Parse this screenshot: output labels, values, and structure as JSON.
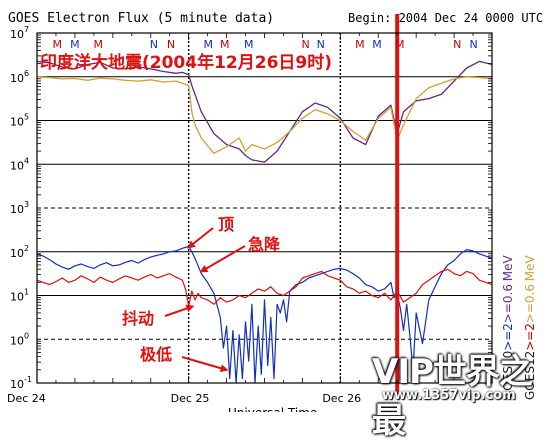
{
  "chart_data": {
    "type": "line",
    "title": "GOES Electron Flux (5 minute data)",
    "begin_label": "Begin: 2004 Dec 24 0000 UTC",
    "overlay_title": "印度洋大地震(2004年12月26日9时)",
    "y_scale": "log",
    "ylim_exp": [
      -1,
      7
    ],
    "y_tick_labels": [
      {
        "base": "10",
        "exp": "7",
        "value_exp": 7
      },
      {
        "base": "10",
        "exp": "6",
        "value_exp": 6
      },
      {
        "base": "10",
        "exp": "5",
        "value_exp": 5
      },
      {
        "base": "10",
        "exp": "4",
        "value_exp": 4
      },
      {
        "base": "10",
        "exp": "3",
        "value_exp": 3
      },
      {
        "base": "10",
        "exp": "2",
        "value_exp": 2
      },
      {
        "base": "10",
        "exp": "1",
        "value_exp": 1
      },
      {
        "base": "10",
        "exp": "0",
        "value_exp": 0
      },
      {
        "base": "10",
        "exp": "-1",
        "value_exp": -1
      }
    ],
    "x_tick_labels": [
      "Dec 24",
      "Dec 25",
      "Dec 26"
    ],
    "x_range_hours": [
      0,
      72
    ],
    "xlabel_partial": "Universal Time",
    "mn_markers": [
      {
        "t": 3.2,
        "label": "M",
        "color": "#cc0000"
      },
      {
        "t": 6.0,
        "label": "M",
        "color": "#1030c0"
      },
      {
        "t": 9.7,
        "label": "M",
        "color": "#cc0000"
      },
      {
        "t": 18.5,
        "label": "N",
        "color": "#1030c0"
      },
      {
        "t": 21.2,
        "label": "N",
        "color": "#cc0000"
      },
      {
        "t": 27.1,
        "label": "M",
        "color": "#1030c0"
      },
      {
        "t": 29.7,
        "label": "M",
        "color": "#cc0000"
      },
      {
        "t": 33.5,
        "label": "M",
        "color": "#1030c0"
      },
      {
        "t": 42.5,
        "label": "N",
        "color": "#cc0000"
      },
      {
        "t": 44.9,
        "label": "N",
        "color": "#1030c0"
      },
      {
        "t": 51.1,
        "label": "M",
        "color": "#cc0000"
      },
      {
        "t": 53.8,
        "label": "M",
        "color": "#1030c0"
      },
      {
        "t": 57.4,
        "label": "M",
        "color": "#cc0000"
      },
      {
        "t": 66.5,
        "label": "N",
        "color": "#cc0000"
      },
      {
        "t": 69.1,
        "label": "N",
        "color": "#1030c0"
      }
    ],
    "earthquake_line_hours": 57,
    "right_labels": [
      {
        "text": "GOES10",
        "color": "#1a1a1a"
      },
      {
        "text": ">=2",
        "color": "#1030c0"
      },
      {
        "text": ">=0.6",
        "color": "#6a2c8c"
      },
      {
        "text": "MeV",
        "color": "#6a2c8c"
      },
      {
        "text": "GOES12",
        "color": "#1a1a1a"
      },
      {
        "text": ">=2",
        "color": "#cc0000"
      },
      {
        "text": ">=0.6",
        "color": "#d4a030"
      },
      {
        "text": "MeV",
        "color": "#d4a030"
      }
    ],
    "annotations": [
      {
        "text": "顶",
        "target_t": 24.0,
        "target_exp": 2.1
      },
      {
        "text": "急降",
        "target_t": 26.0,
        "target_exp": 1.55
      },
      {
        "text": "抖动",
        "target_t": 24.6,
        "target_exp": 0.75
      },
      {
        "text": "极低",
        "target_t": 30.0,
        "target_exp": -0.7
      }
    ],
    "series": [
      {
        "name": "GOES10 >=0.6 MeV",
        "color": "#5c2a8a",
        "width": 1.3,
        "x": [
          0,
          2,
          4,
          6,
          8,
          10,
          12,
          14,
          16,
          18,
          20,
          22,
          23,
          24,
          24.5,
          25,
          26,
          28,
          30,
          32,
          33,
          34,
          36,
          38,
          40,
          42,
          44,
          46,
          48,
          50,
          52,
          54,
          56,
          57,
          58,
          60,
          62,
          64,
          66,
          68,
          70,
          72
        ],
        "y": [
          6.35,
          6.32,
          6.22,
          6.18,
          6.28,
          6.33,
          6.2,
          6.18,
          6.23,
          6.18,
          6.12,
          6.08,
          6.1,
          6.05,
          5.8,
          5.6,
          5.2,
          4.7,
          4.45,
          4.35,
          4.2,
          4.1,
          4.05,
          4.3,
          4.75,
          5.2,
          5.4,
          5.3,
          5.05,
          4.6,
          4.45,
          5.1,
          5.35,
          4.7,
          5.2,
          5.45,
          5.5,
          5.6,
          5.9,
          6.2,
          6.35,
          6.28
        ]
      },
      {
        "name": "GOES12 >=0.6 MeV",
        "color": "#d4a030",
        "width": 1.3,
        "x": [
          0,
          2,
          4,
          6,
          8,
          10,
          12,
          14,
          16,
          18,
          20,
          22,
          23,
          24,
          24.5,
          25,
          26,
          28,
          30,
          32,
          33,
          34,
          36,
          38,
          40,
          42,
          44,
          46,
          48,
          50,
          52,
          54,
          56,
          57,
          58,
          60,
          62,
          64,
          66,
          68,
          70,
          72
        ],
        "y": [
          6.0,
          5.98,
          5.95,
          5.96,
          5.92,
          5.97,
          5.95,
          5.92,
          5.9,
          5.93,
          5.88,
          5.9,
          5.85,
          5.8,
          5.2,
          4.9,
          4.6,
          4.25,
          4.4,
          4.6,
          4.3,
          4.45,
          4.35,
          4.5,
          4.75,
          5.05,
          5.25,
          5.15,
          5.0,
          4.75,
          4.55,
          5.05,
          5.3,
          4.55,
          4.9,
          5.5,
          5.75,
          5.85,
          5.95,
          6.0,
          5.98,
          5.95
        ]
      },
      {
        "name": "GOES10 >=2 MeV",
        "color": "#1030c0",
        "width": 1.2,
        "x": [
          0,
          1,
          2,
          3,
          4,
          5,
          6,
          7,
          8,
          9,
          10,
          11,
          12,
          13,
          14,
          15,
          16,
          17,
          18,
          19,
          20,
          21,
          22,
          23,
          24,
          24.5,
          25,
          25.5,
          26,
          27,
          28,
          29,
          29.5,
          30,
          30.5,
          31,
          31.5,
          32,
          32.5,
          33,
          33.5,
          34,
          34.5,
          35,
          35.5,
          36,
          36.5,
          37,
          37.5,
          38,
          38.5,
          39,
          39.5,
          40,
          41,
          42,
          43,
          44,
          45,
          46,
          47,
          48,
          49,
          50,
          51,
          52,
          53,
          54,
          55,
          56,
          56.5,
          57,
          57.5,
          58,
          58.5,
          59,
          59.5,
          60,
          61,
          62,
          63,
          64,
          65,
          66,
          67,
          68,
          69,
          70,
          71,
          72
        ],
        "y": [
          1.95,
          1.9,
          1.82,
          1.72,
          1.65,
          1.6,
          1.68,
          1.72,
          1.66,
          1.62,
          1.7,
          1.75,
          1.68,
          1.7,
          1.76,
          1.8,
          1.74,
          1.82,
          1.88,
          1.92,
          1.95,
          2.0,
          2.02,
          2.08,
          2.12,
          2.0,
          1.85,
          1.68,
          1.5,
          1.3,
          1.05,
          0.5,
          -0.2,
          0.3,
          -0.9,
          0.2,
          -1.0,
          0.1,
          -0.9,
          0.4,
          -0.5,
          0.8,
          -1.0,
          0.3,
          -0.8,
          0.9,
          -0.6,
          0.5,
          -0.9,
          0.8,
          0.6,
          0.9,
          0.4,
          1.1,
          1.25,
          1.3,
          1.4,
          1.45,
          1.5,
          1.55,
          1.6,
          1.62,
          1.58,
          1.5,
          1.4,
          1.25,
          1.2,
          1.1,
          1.15,
          1.3,
          0.95,
          1.05,
          0.7,
          0.2,
          0.8,
          0.1,
          -0.7,
          0.6,
          -0.1,
          0.9,
          1.2,
          1.5,
          1.7,
          1.8,
          1.95,
          2.05,
          2.02,
          1.95,
          1.9,
          1.85
        ]
      },
      {
        "name": "GOES12 >=2 MeV",
        "color": "#dd1111",
        "width": 1.2,
        "x": [
          0,
          1,
          2,
          3,
          4,
          5,
          6,
          7,
          8,
          9,
          10,
          11,
          12,
          13,
          14,
          15,
          16,
          17,
          18,
          19,
          20,
          21,
          22,
          23,
          23.5,
          24,
          24.5,
          25,
          25.5,
          26,
          27,
          28,
          29,
          30,
          31,
          32,
          33,
          34,
          35,
          36,
          37,
          38,
          39,
          40,
          41,
          42,
          43,
          44,
          45,
          46,
          47,
          48,
          49,
          50,
          51,
          52,
          53,
          54,
          55,
          56,
          57,
          58,
          59,
          60,
          61,
          62,
          63,
          64,
          65,
          66,
          67,
          68,
          69,
          70,
          71,
          72
        ],
        "y": [
          1.35,
          1.3,
          1.25,
          1.32,
          1.4,
          1.3,
          1.35,
          1.45,
          1.38,
          1.3,
          1.42,
          1.35,
          1.3,
          1.38,
          1.45,
          1.4,
          1.35,
          1.42,
          1.48,
          1.4,
          1.45,
          1.5,
          1.42,
          1.35,
          1.15,
          0.75,
          1.1,
          0.9,
          1.05,
          0.95,
          0.9,
          0.8,
          0.95,
          0.85,
          0.9,
          1.0,
          0.95,
          1.05,
          1.15,
          1.1,
          1.2,
          1.05,
          1.0,
          1.1,
          1.2,
          1.4,
          1.45,
          1.5,
          1.55,
          1.45,
          1.4,
          1.35,
          1.2,
          1.15,
          1.05,
          1.1,
          1.0,
          0.95,
          1.05,
          0.9,
          1.1,
          0.85,
          0.95,
          1.05,
          1.25,
          1.35,
          1.45,
          1.55,
          1.6,
          1.5,
          1.45,
          1.55,
          1.5,
          1.35,
          1.3,
          1.25
        ]
      }
    ]
  },
  "watermark": {
    "brand": "VIP世界之最",
    "url": "www.1357vip.com"
  }
}
